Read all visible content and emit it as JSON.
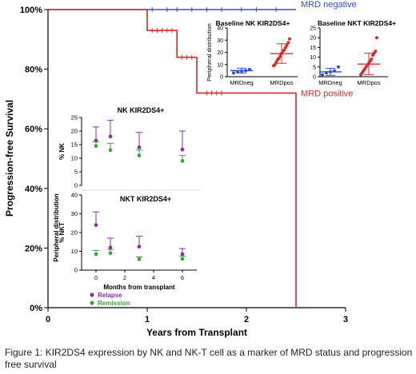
{
  "chart_data": [
    {
      "type": "line",
      "subtype": "kaplan-meier",
      "title": "",
      "xlabel": "Years from Transplant",
      "ylabel": "Progression-free Survival",
      "xlim": [
        0,
        3
      ],
      "ylim": [
        0,
        100
      ],
      "x_ticks": [
        "0",
        "1",
        "2",
        "3"
      ],
      "y_ticks": [
        "0%",
        "20%",
        "40%",
        "60%",
        "80%",
        "100%"
      ],
      "grid": false,
      "series": [
        {
          "name": "MRD negative",
          "color": "#2b4fd6",
          "steps": [
            [
              0,
              100
            ],
            [
              2.5,
              100
            ]
          ],
          "censor_x": [
            1.05,
            1.2,
            1.3,
            1.45,
            1.6,
            1.75,
            1.95,
            2.1,
            2.3
          ]
        },
        {
          "name": "MRD positive",
          "color": "#d62a2a",
          "steps": [
            [
              0,
              100
            ],
            [
              1.0,
              100
            ],
            [
              1.0,
              93
            ],
            [
              1.3,
              93
            ],
            [
              1.3,
              84
            ],
            [
              1.5,
              84
            ],
            [
              1.5,
              72
            ],
            [
              2.5,
              72
            ],
            [
              2.5,
              0
            ]
          ],
          "censor_x": [
            1.05,
            1.1,
            1.15,
            1.2,
            1.25,
            1.35,
            1.4,
            1.45,
            1.6,
            1.65,
            1.7,
            1.75
          ]
        }
      ]
    },
    {
      "type": "scatter",
      "title": "Baseline NK KIR2DS4+",
      "ylabel": "Peripheral distribution",
      "categories": [
        "MRDneg",
        "MRDpos"
      ],
      "ylim": [
        0,
        40
      ],
      "y_ticks": [
        "0",
        "10",
        "20",
        "30",
        "40"
      ],
      "series": [
        {
          "name": "MRDneg",
          "color": "#2b4fd6",
          "points": [
            3,
            4,
            4.5,
            5,
            6
          ],
          "mean": 5,
          "sd": 2
        },
        {
          "name": "MRDpos",
          "color": "#d62a2a",
          "points": [
            9,
            10,
            12,
            14,
            15,
            17,
            19,
            21,
            22,
            24,
            26,
            28,
            31
          ],
          "mean": 19,
          "sd": 8
        }
      ]
    },
    {
      "type": "scatter",
      "title": "Baseline NKT KIR2DS4+",
      "categories": [
        "MRDneg",
        "MRDpos"
      ],
      "ylim": [
        0,
        25
      ],
      "y_ticks": [
        "0",
        "5",
        "10",
        "15",
        "20",
        "25"
      ],
      "series": [
        {
          "name": "MRDneg",
          "color": "#2b4fd6",
          "points": [
            1,
            2,
            2.5,
            3,
            5
          ],
          "mean": 2.5,
          "sd": 1.8
        },
        {
          "name": "MRDpos",
          "color": "#d62a2a",
          "points": [
            1,
            2,
            3,
            4,
            5,
            6,
            7,
            8,
            9,
            11,
            12,
            13,
            20
          ],
          "mean": 6.5,
          "sd": 5.5
        }
      ]
    },
    {
      "type": "scatter",
      "title": "NK KIR2DS4+",
      "ylabel": "% NK",
      "ylim": [
        0,
        25
      ],
      "y_ticks": [
        "0",
        "5",
        "10",
        "15",
        "20",
        "25"
      ],
      "x": [
        0,
        1,
        3,
        6
      ],
      "series": [
        {
          "name": "Relapse",
          "color": "#8e2fa8",
          "mean": [
            16.5,
            18,
            14,
            13.2
          ],
          "upper": [
            21.5,
            24,
            19.5,
            20
          ]
        },
        {
          "name": "Remission",
          "color": "#3fa33f",
          "mean": [
            14.5,
            13,
            11,
            9
          ],
          "upper": [
            16,
            15.5,
            13,
            11
          ]
        }
      ]
    },
    {
      "type": "scatter",
      "title": "NKT KIR2DS4+",
      "ylabel": "% NKT",
      "shared_ylabel": "Peripheral distribution",
      "xlabel": "Months from transplant",
      "xlim": [
        -1,
        7
      ],
      "x_ticks": [
        "0",
        "2",
        "4",
        "6"
      ],
      "ylim": [
        0,
        40
      ],
      "y_ticks": [
        "0",
        "10",
        "20",
        "30",
        "40"
      ],
      "x": [
        0,
        1,
        3,
        6
      ],
      "series": [
        {
          "name": "Relapse",
          "color": "#8e2fa8",
          "mean": [
            24,
            12,
            12.5,
            8.5
          ],
          "upper": [
            31,
            17,
            18,
            11.5
          ]
        },
        {
          "name": "Remission",
          "color": "#3fa33f",
          "mean": [
            8.5,
            9,
            5.8,
            6
          ],
          "upper": [
            10.5,
            11,
            7,
            7.5
          ]
        }
      ]
    }
  ],
  "caption": "Figure 1: KIR2DS4 expression by NK and NK-T cell as a marker of MRD status and progression free survival"
}
